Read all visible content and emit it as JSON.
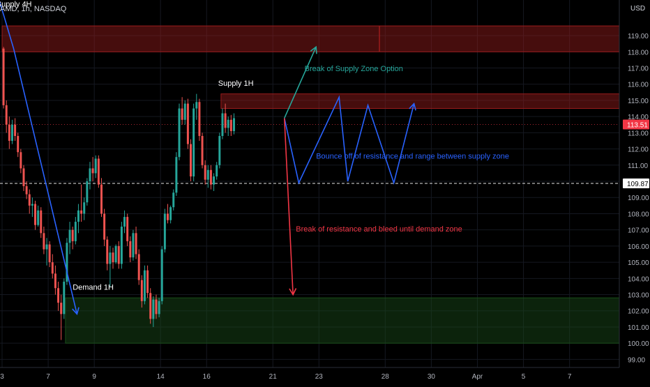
{
  "header": {
    "symbol_label": "AMD, 1h, NASDAQ",
    "currency_label": "USD"
  },
  "chart_data": {
    "type": "candlestick",
    "symbol": "AMD",
    "timeframe": "1h",
    "exchange": "NASDAQ",
    "currency": "USD",
    "y_range": [
      98.5,
      121.2
    ],
    "y_ticks": [
      99,
      100,
      101,
      102,
      103,
      104,
      105,
      106,
      107,
      108,
      109,
      110,
      111,
      112,
      113,
      114,
      115,
      116,
      117,
      118,
      119
    ],
    "y_tick_labels": [
      "99.00",
      "100.00",
      "101.00",
      "102.00",
      "103.00",
      "104.00",
      "105.00",
      "106.00",
      "107.00",
      "108.00",
      "109.00",
      "110.00",
      "111.00",
      "112.00",
      "113.00",
      "114.00",
      "115.00",
      "116.00",
      "117.00",
      "118.00",
      "119.00"
    ],
    "x_ticks": [
      {
        "label": "3",
        "bar": 0
      },
      {
        "label": "7",
        "bar": 16
      },
      {
        "label": "9",
        "bar": 32
      },
      {
        "label": "14",
        "bar": 55
      },
      {
        "label": "16",
        "bar": 71
      },
      {
        "label": "21",
        "bar": 94
      },
      {
        "label": "23",
        "bar": 110
      },
      {
        "label": "28",
        "bar": 133
      },
      {
        "label": "30",
        "bar": 149
      },
      {
        "label": "Apr",
        "bar": 165
      },
      {
        "label": "5",
        "bar": 181
      },
      {
        "label": "7",
        "bar": 197
      }
    ],
    "bars_shown": 215,
    "candles": [
      [
        118.2,
        118.3,
        114.5,
        114.7
      ],
      [
        114.7,
        115.0,
        113.0,
        113.5
      ],
      [
        113.5,
        114.0,
        112.0,
        112.5
      ],
      [
        112.5,
        113.8,
        112.3,
        113.5
      ],
      [
        113.5,
        113.9,
        112.5,
        112.8
      ],
      [
        112.8,
        113.0,
        111.5,
        111.8
      ],
      [
        111.8,
        112.0,
        110.5,
        110.8
      ],
      [
        110.8,
        111.0,
        109.4,
        109.7
      ],
      [
        109.7,
        110.0,
        108.9,
        109.2
      ],
      [
        109.2,
        109.5,
        108.0,
        108.5
      ],
      [
        108.5,
        109.0,
        107.8,
        108.6
      ],
      [
        108.6,
        108.8,
        107.0,
        107.3
      ],
      [
        107.3,
        108.5,
        107.2,
        108.2
      ],
      [
        108.2,
        108.4,
        106.5,
        106.8
      ],
      [
        106.8,
        107.2,
        105.5,
        105.8
      ],
      [
        105.8,
        106.5,
        104.8,
        106.1
      ],
      [
        106.1,
        106.3,
        104.7,
        105.0
      ],
      [
        105.0,
        105.5,
        104.0,
        104.3
      ],
      [
        104.3,
        104.8,
        103.0,
        103.4
      ],
      [
        103.4,
        103.8,
        102.0,
        102.5
      ],
      [
        102.5,
        103.0,
        100.2,
        101.8
      ],
      [
        101.8,
        104.0,
        101.5,
        103.8
      ],
      [
        103.8,
        106.5,
        103.6,
        106.2
      ],
      [
        106.2,
        107.5,
        105.5,
        107.0
      ],
      [
        107.0,
        107.2,
        105.8,
        106.3
      ],
      [
        106.3,
        107.8,
        106.1,
        107.5
      ],
      [
        107.5,
        108.6,
        106.8,
        108.2
      ],
      [
        108.2,
        109.8,
        107.5,
        108.0
      ],
      [
        108.0,
        109.0,
        107.6,
        108.7
      ],
      [
        108.7,
        110.2,
        108.5,
        110.0
      ],
      [
        110.0,
        111.2,
        109.5,
        110.8
      ],
      [
        110.8,
        111.5,
        110.0,
        110.5
      ],
      [
        110.5,
        111.6,
        110.2,
        111.4
      ],
      [
        111.4,
        111.6,
        109.6,
        109.8
      ],
      [
        109.8,
        110.2,
        107.8,
        108.0
      ],
      [
        108.0,
        108.3,
        106.0,
        106.4
      ],
      [
        106.4,
        106.6,
        104.5,
        104.9
      ],
      [
        104.9,
        106.0,
        103.5,
        105.6
      ],
      [
        105.6,
        105.9,
        104.6,
        105.0
      ],
      [
        105.0,
        106.1,
        104.9,
        106.0
      ],
      [
        106.0,
        106.3,
        104.6,
        104.9
      ],
      [
        104.9,
        107.5,
        104.6,
        107.2
      ],
      [
        107.2,
        108.2,
        106.8,
        107.8
      ],
      [
        107.8,
        108.0,
        106.0,
        106.3
      ],
      [
        106.3,
        106.6,
        105.0,
        105.3
      ],
      [
        105.3,
        107.0,
        105.1,
        106.8
      ],
      [
        106.8,
        107.2,
        105.2,
        105.5
      ],
      [
        105.5,
        105.8,
        103.6,
        103.9
      ],
      [
        103.9,
        104.2,
        102.2,
        102.6
      ],
      [
        102.6,
        104.8,
        102.4,
        104.5
      ],
      [
        104.5,
        104.8,
        102.8,
        103.1
      ],
      [
        103.1,
        103.4,
        101.2,
        101.5
      ],
      [
        101.5,
        102.9,
        101.0,
        102.7
      ],
      [
        102.7,
        103.0,
        101.5,
        101.8
      ],
      [
        101.8,
        102.8,
        101.6,
        102.6
      ],
      [
        102.6,
        106.0,
        102.4,
        105.8
      ],
      [
        105.8,
        108.3,
        105.6,
        108.0
      ],
      [
        108.0,
        108.6,
        107.4,
        107.6
      ],
      [
        107.6,
        108.5,
        107.4,
        108.4
      ],
      [
        108.4,
        109.5,
        108.2,
        109.3
      ],
      [
        109.3,
        111.8,
        109.1,
        111.5
      ],
      [
        111.5,
        114.8,
        111.3,
        114.5
      ],
      [
        114.5,
        115.2,
        113.5,
        113.8
      ],
      [
        113.8,
        115.0,
        113.5,
        114.8
      ],
      [
        114.8,
        115.1,
        112.0,
        112.3
      ],
      [
        112.3,
        112.6,
        110.0,
        110.3
      ],
      [
        110.3,
        114.8,
        110.0,
        114.5
      ],
      [
        114.5,
        115.4,
        113.8,
        114.9
      ],
      [
        114.9,
        115.1,
        112.5,
        112.8
      ],
      [
        112.8,
        113.0,
        110.8,
        111.0
      ],
      [
        111.0,
        111.3,
        109.8,
        110.1
      ],
      [
        110.1,
        111.0,
        109.6,
        110.7
      ],
      [
        110.7,
        111.0,
        109.5,
        109.8
      ],
      [
        109.8,
        110.5,
        109.4,
        110.3
      ],
      [
        110.3,
        111.2,
        110.1,
        111.0
      ],
      [
        111.0,
        113.0,
        110.8,
        112.8
      ],
      [
        112.8,
        114.5,
        112.6,
        114.2
      ],
      [
        114.2,
        114.8,
        113.0,
        113.3
      ],
      [
        113.3,
        114.0,
        112.8,
        113.8
      ],
      [
        113.8,
        114.1,
        112.8,
        113.1
      ],
      [
        113.1,
        114.2,
        112.9,
        113.9
      ]
    ],
    "zones": [
      {
        "label": "Supply 4H",
        "y_top": 119.6,
        "y_bottom": 118.0,
        "bar_start": 0,
        "bar_end": 215,
        "color": "#9b1c1c",
        "divider_bar": 131
      },
      {
        "label": "Supply 1H",
        "y_top": 115.4,
        "y_bottom": 114.5,
        "bar_start": 76,
        "bar_end": 215,
        "color": "#9b1c1c"
      },
      {
        "label": "Demand 1H",
        "y_top": 102.8,
        "y_bottom": 100.0,
        "bar_start": 22,
        "bar_end": 215,
        "color": "#1a4d1a"
      }
    ],
    "price_lines": [
      {
        "value": 113.51,
        "label": "113.51",
        "color": "#f23645",
        "style": "dotted"
      },
      {
        "value": 109.87,
        "label": "109.87",
        "color": "#ffffff",
        "style": "dashed"
      }
    ],
    "trendlines": [
      {
        "color": "#2962ff",
        "points": [
          [
            -1,
            121.2
          ],
          [
            4,
            118.2
          ],
          [
            26,
            101.8
          ]
        ],
        "arrow_end": true
      },
      {
        "color": "#2962ff",
        "points": [
          [
            98,
            113.9
          ],
          [
            103,
            109.9
          ],
          [
            117,
            115.2
          ],
          [
            120,
            110.0
          ],
          [
            127,
            114.7
          ],
          [
            136,
            109.9
          ],
          [
            143,
            114.8
          ]
        ],
        "arrow_end": true
      },
      {
        "color": "#26a69a",
        "points": [
          [
            98,
            113.9
          ],
          [
            109,
            118.3
          ]
        ],
        "arrow_end": true
      },
      {
        "color": "#f23645",
        "points": [
          [
            98,
            113.9
          ],
          [
            101,
            103.0
          ]
        ],
        "arrow_end": true
      }
    ],
    "annotations": [
      {
        "text": "Supply 4H",
        "bar": -2,
        "value": 120.8,
        "color": "#ffffff"
      },
      {
        "text": "Supply 1H",
        "bar": 75,
        "value": 115.9,
        "color": "#ffffff"
      },
      {
        "text": "Demand 1H",
        "bar": 24.5,
        "value": 103.3,
        "color": "#ffffff"
      },
      {
        "text": "Break of Supply Zone Option",
        "bar": 105,
        "value": 116.8,
        "color": "#26a69a"
      },
      {
        "text": "Bounce off of resistance and range between supply zone",
        "bar": 109,
        "value": 111.4,
        "color": "#2962ff"
      },
      {
        "text": "Break of resistance and bleed until demand zone",
        "bar": 102,
        "value": 106.9,
        "color": "#f23645"
      }
    ],
    "up_color": "#26a69a",
    "down_color": "#ef5350"
  }
}
